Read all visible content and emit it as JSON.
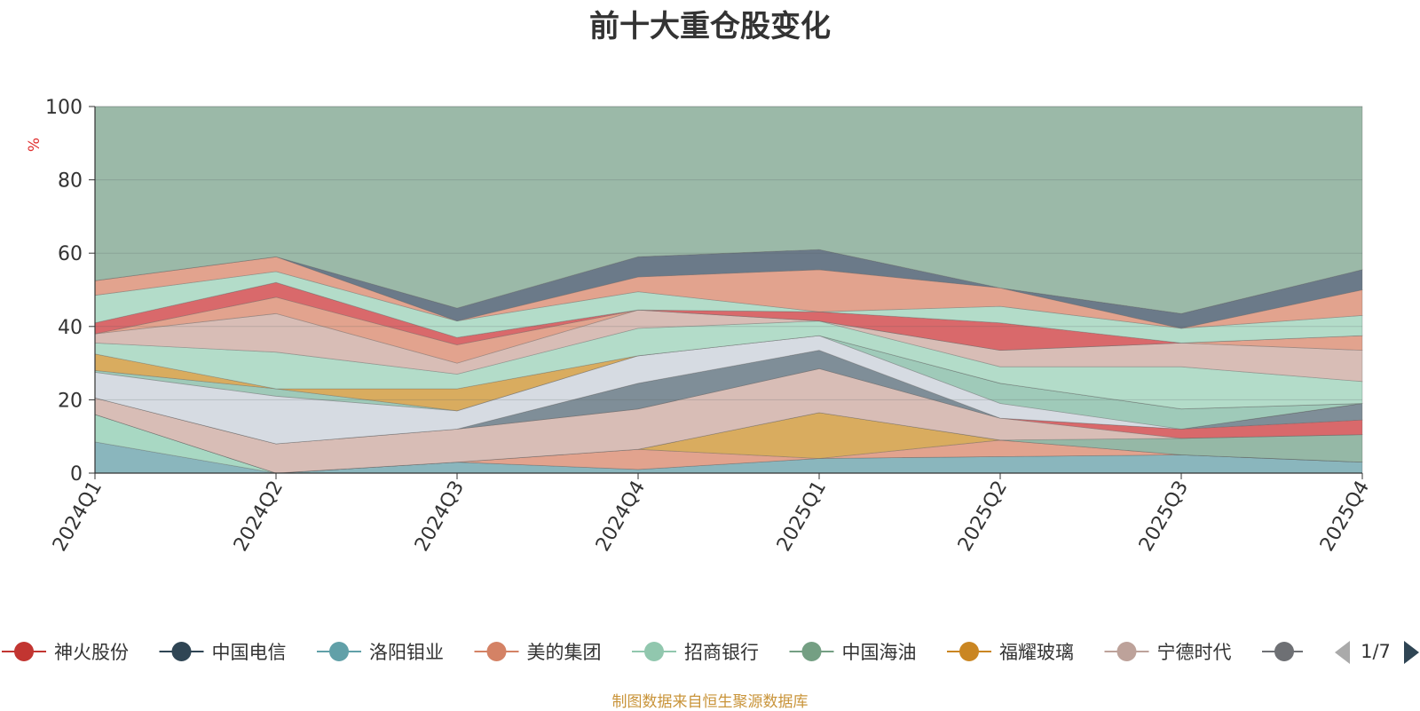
{
  "chart_data": {
    "type": "area",
    "title": "前十大重仓股变化",
    "ylabel": "%",
    "ylim": [
      0,
      100
    ],
    "yticks": [
      0,
      20,
      40,
      60,
      80,
      100
    ],
    "grid": true,
    "legend_position": "bottom",
    "legend_page": "1/7",
    "categories": [
      "2024Q1",
      "2024Q2",
      "2024Q3",
      "2024Q4",
      "2025Q1",
      "2025Q2",
      "2025Q3",
      "2025Q4"
    ],
    "layers": [
      {
        "color": "#8ab6bd",
        "lower": [
          0,
          0,
          0,
          0,
          0,
          0,
          0,
          0
        ],
        "upper": [
          8.5,
          0,
          3,
          1,
          4,
          4.5,
          5,
          3
        ]
      },
      {
        "color": "#a8d8c3",
        "lower": [
          8.5,
          0,
          3,
          1,
          4,
          4.5,
          5,
          3
        ],
        "upper": [
          16,
          0,
          3,
          1,
          4,
          4.5,
          5,
          3
        ]
      },
      {
        "color": "#e2a38e",
        "lower": [
          16,
          0,
          3,
          1,
          4,
          4.5,
          5,
          3
        ],
        "upper": [
          16,
          0,
          3,
          6.5,
          4,
          9,
          5,
          3
        ]
      },
      {
        "color": "#d9ac5f",
        "lower": [
          16,
          0,
          3,
          6.5,
          4,
          9,
          5,
          3
        ],
        "upper": [
          16,
          0,
          3,
          6.5,
          16.5,
          9,
          5,
          3
        ]
      },
      {
        "color": "#95b8a6",
        "lower": [
          16,
          0,
          3,
          6.5,
          16.5,
          9,
          5,
          3
        ],
        "upper": [
          16,
          0,
          3,
          6.5,
          16.5,
          9,
          9.5,
          10.5
        ]
      },
      {
        "color": "#d8bdb6",
        "lower": [
          16,
          0,
          3,
          6.5,
          16.5,
          9,
          9.5,
          10.5
        ],
        "upper": [
          20.5,
          8,
          12,
          17.5,
          28.5,
          15,
          9.5,
          10.5
        ]
      },
      {
        "color": "#d9696b",
        "lower": [
          20.5,
          8,
          12,
          17.5,
          28.5,
          15,
          9.5,
          10.5
        ],
        "upper": [
          20.5,
          8,
          12,
          17.5,
          28.5,
          15,
          12,
          14.5
        ]
      },
      {
        "color": "#7f8e98",
        "lower": [
          20.5,
          8,
          12,
          17.5,
          28.5,
          15,
          12,
          14.5
        ],
        "upper": [
          20.5,
          8,
          12,
          24.5,
          33.5,
          15,
          12,
          19
        ]
      },
      {
        "color": "#d6dbe2",
        "lower": [
          20.5,
          8,
          12,
          24.5,
          33.5,
          15,
          12,
          19
        ],
        "upper": [
          27.5,
          21,
          17,
          32,
          37.5,
          19,
          12,
          19
        ]
      },
      {
        "color": "#9fcab9",
        "lower": [
          27.5,
          21,
          17,
          32,
          37.5,
          19,
          12,
          19
        ],
        "upper": [
          28,
          23,
          17,
          32,
          37.5,
          24.5,
          17.5,
          19
        ]
      },
      {
        "color": "#d9ac5f",
        "lower": [
          28,
          23,
          17,
          32,
          37.5,
          24.5,
          17.5,
          19
        ],
        "upper": [
          32.5,
          23,
          23,
          32,
          37.5,
          24.5,
          17.5,
          19
        ]
      },
      {
        "color": "#b3dcc9",
        "lower": [
          32.5,
          23,
          23,
          32,
          37.5,
          24.5,
          17.5,
          19
        ],
        "upper": [
          35.5,
          33,
          27,
          39.5,
          41.5,
          29,
          29,
          25
        ]
      },
      {
        "color": "#d8bdb6",
        "lower": [
          35.5,
          33,
          27,
          39.5,
          41.5,
          29,
          29,
          25
        ],
        "upper": [
          38,
          43.5,
          30,
          44.5,
          41.5,
          33.5,
          35.5,
          33.5
        ]
      },
      {
        "color": "#e2a38e",
        "lower": [
          38,
          43.5,
          30,
          44.5,
          41.5,
          33.5,
          35.5,
          33.5
        ],
        "upper": [
          38,
          48,
          35,
          44.5,
          41.5,
          33.5,
          35.5,
          37.5
        ]
      },
      {
        "color": "#d9696b",
        "lower": [
          38,
          48,
          35,
          44.5,
          41.5,
          33.5,
          35.5,
          37.5
        ],
        "upper": [
          41,
          52,
          37,
          44.5,
          44,
          41,
          35.5,
          37.5
        ]
      },
      {
        "color": "#b3dcc9",
        "lower": [
          41,
          52,
          37,
          44.5,
          44,
          41,
          35.5,
          37.5
        ],
        "upper": [
          48.5,
          55,
          41.5,
          49.5,
          44,
          45.5,
          39.5,
          43
        ]
      },
      {
        "color": "#e2a38e",
        "lower": [
          48.5,
          55,
          41.5,
          49.5,
          44,
          45.5,
          39.5,
          43
        ],
        "upper": [
          52.5,
          59,
          41.5,
          53.5,
          55.5,
          50.5,
          39.5,
          50
        ]
      },
      {
        "color": "#6b7a89",
        "lower": [
          52.5,
          59,
          41.5,
          53.5,
          55.5,
          50.5,
          39.5,
          50
        ],
        "upper": [
          52.5,
          59,
          45,
          59,
          61,
          50.5,
          43.5,
          55.5
        ]
      },
      {
        "color": "#9bb9a8",
        "lower": [
          52.5,
          59,
          45,
          59,
          61,
          50.5,
          43.5,
          55.5
        ],
        "upper": [
          100,
          100,
          100,
          100,
          100,
          100,
          100,
          100
        ]
      }
    ],
    "legend": [
      {
        "name": "神火股份",
        "color": "#c23531"
      },
      {
        "name": "中国电信",
        "color": "#2f4554"
      },
      {
        "name": "洛阳钼业",
        "color": "#61a0a8"
      },
      {
        "name": "美的集团",
        "color": "#d48265"
      },
      {
        "name": "招商银行",
        "color": "#91c7ae"
      },
      {
        "name": "中国海油",
        "color": "#749f83"
      },
      {
        "name": "福耀玻璃",
        "color": "#ca8622"
      },
      {
        "name": "宁德时代",
        "color": "#bda29a"
      },
      {
        "name": "",
        "color": "#6e7074"
      }
    ]
  },
  "footer_note": "制图数据来自恒生聚源数据库"
}
